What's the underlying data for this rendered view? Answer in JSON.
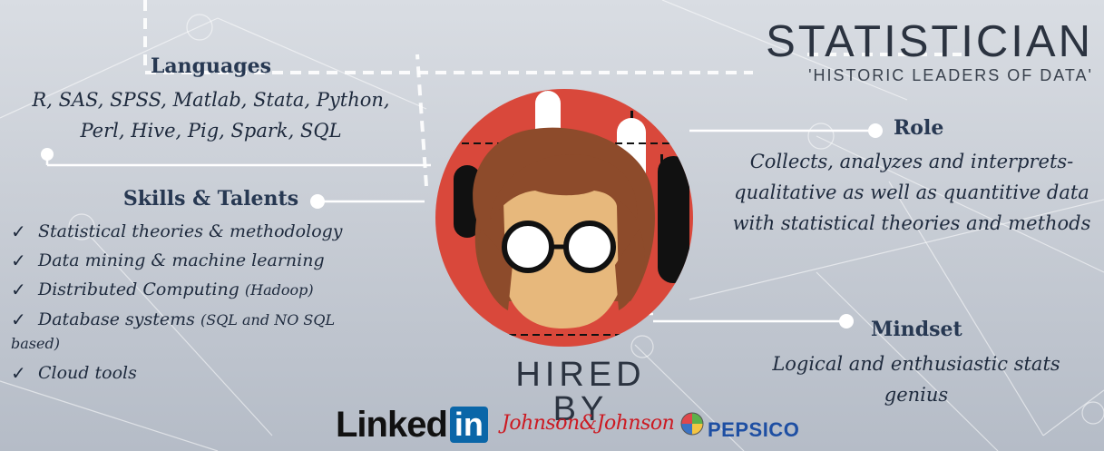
{
  "header": {
    "title": "STATISTICIAN",
    "subtitle": "'HISTORIC LEADERS OF DATA'"
  },
  "languages": {
    "title": "Languages",
    "line1": "R, SAS, SPSS, Matlab, Stata, Python,",
    "line2": "Perl, Hive, Pig, Spark, SQL"
  },
  "skills": {
    "title": "Skills & Talents",
    "check_glyph": "✓",
    "items": [
      {
        "main": "Statistical theories & methodology",
        "extra": ""
      },
      {
        "main": "Data mining & machine learning",
        "extra": ""
      },
      {
        "main": "Distributed Computing",
        "extra": "(Hadoop)"
      },
      {
        "main": "Database systems",
        "extra": "(SQL and NO SQL",
        "cont": "based)"
      },
      {
        "main": "Cloud tools",
        "extra": ""
      }
    ]
  },
  "role": {
    "title": "Role",
    "text": "Collects, analyzes and interprets- qualitative as well as quantitive data with statistical theories and methods"
  },
  "mindset": {
    "title": "Mindset",
    "text": "Logical and enthusiastic stats genius"
  },
  "hired": {
    "label": "HIRED BY",
    "logos": {
      "linkedin_word": "Linked",
      "linkedin_box": "in",
      "jj": "Johnson&Johnson",
      "pepsico": "PEPSICO"
    }
  },
  "colors": {
    "avatar_circle": "#d9483b",
    "hair": "#8d4b2b",
    "skin": "#e7b87c",
    "text_dark": "#23324a",
    "linkedin_blue": "#0a66a8",
    "jj_red": "#cc1a22",
    "pepsi_blue": "#1e4fa3"
  },
  "icons": [
    "checkmark-icon",
    "avatar-illustration",
    "node-dot-icon"
  ]
}
